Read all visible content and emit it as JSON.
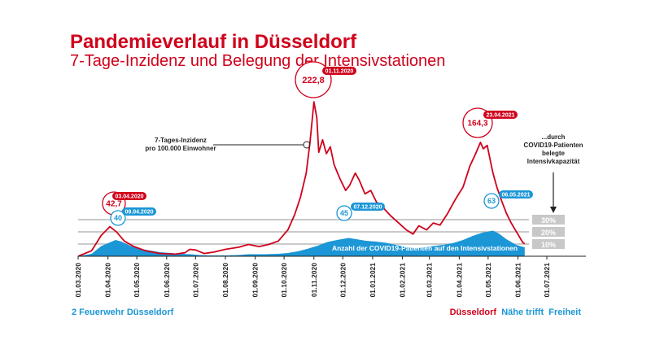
{
  "title": "Pandemieverlauf in Düsseldorf",
  "subtitle": "7-Tage-Inzidenz und Belegung der Intensivstationen",
  "footer": {
    "left": "2 Feuerwehr Düsseldorf",
    "brand_city": "Düsseldorf",
    "brand_slogan1": "Nähe trifft",
    "brand_slogan2": "Freiheit"
  },
  "colors": {
    "incidence": "#d0021b",
    "icu": "#1b96d6",
    "threshold_box": "#c8c8c8",
    "axis": "#222222"
  },
  "chart_data": {
    "type": "area",
    "xlim": [
      "2020-03-01",
      "2021-07-01"
    ],
    "x_tick_labels": [
      "01.03.2020",
      "01.04.2020",
      "01.05.2020",
      "01.06.2020",
      "01.07.2020",
      "01.08.2020",
      "01.09.2020",
      "01.10.2020",
      "01.11.2020",
      "01.12.2020",
      "01.01.2021",
      "01.02.2021",
      "01.03.2021",
      "01.04.2021",
      "01.05.2021",
      "01.06.2021",
      "01.07.2021"
    ],
    "series": [
      {
        "key": "incidence",
        "type": "line",
        "points": [
          [
            "2020-03-01",
            0
          ],
          [
            "2020-03-15",
            8
          ],
          [
            "2020-03-25",
            30
          ],
          [
            "2020-04-03",
            42.7
          ],
          [
            "2020-04-10",
            35
          ],
          [
            "2020-04-18",
            22
          ],
          [
            "2020-04-28",
            14
          ],
          [
            "2020-05-10",
            8
          ],
          [
            "2020-05-25",
            4
          ],
          [
            "2020-06-10",
            3
          ],
          [
            "2020-06-20",
            5
          ],
          [
            "2020-06-25",
            10
          ],
          [
            "2020-07-01",
            9
          ],
          [
            "2020-07-10",
            4
          ],
          [
            "2020-07-20",
            6
          ],
          [
            "2020-08-01",
            10
          ],
          [
            "2020-08-15",
            13
          ],
          [
            "2020-08-25",
            17
          ],
          [
            "2020-09-05",
            14
          ],
          [
            "2020-09-15",
            17
          ],
          [
            "2020-09-25",
            22
          ],
          [
            "2020-10-05",
            38
          ],
          [
            "2020-10-12",
            60
          ],
          [
            "2020-10-18",
            85
          ],
          [
            "2020-10-24",
            120
          ],
          [
            "2020-10-28",
            165
          ],
          [
            "2020-11-01",
            222.8
          ],
          [
            "2020-11-04",
            200
          ],
          [
            "2020-11-06",
            150
          ],
          [
            "2020-11-10",
            168
          ],
          [
            "2020-11-14",
            148
          ],
          [
            "2020-11-18",
            158
          ],
          [
            "2020-11-22",
            132
          ],
          [
            "2020-11-28",
            112
          ],
          [
            "2020-12-04",
            95
          ],
          [
            "2020-12-08",
            102
          ],
          [
            "2020-12-14",
            120
          ],
          [
            "2020-12-18",
            110
          ],
          [
            "2020-12-24",
            90
          ],
          [
            "2020-12-30",
            95
          ],
          [
            "2021-01-05",
            78
          ],
          [
            "2021-01-12",
            70
          ],
          [
            "2021-01-20",
            58
          ],
          [
            "2021-01-28",
            48
          ],
          [
            "2021-02-05",
            38
          ],
          [
            "2021-02-12",
            32
          ],
          [
            "2021-02-18",
            44
          ],
          [
            "2021-02-26",
            38
          ],
          [
            "2021-03-05",
            48
          ],
          [
            "2021-03-12",
            45
          ],
          [
            "2021-03-20",
            62
          ],
          [
            "2021-03-28",
            82
          ],
          [
            "2021-04-05",
            100
          ],
          [
            "2021-04-12",
            130
          ],
          [
            "2021-04-18",
            148
          ],
          [
            "2021-04-23",
            164.3
          ],
          [
            "2021-04-26",
            155
          ],
          [
            "2021-04-30",
            160
          ],
          [
            "2021-05-03",
            140
          ],
          [
            "2021-05-06",
            120
          ],
          [
            "2021-05-10",
            100
          ],
          [
            "2021-05-15",
            80
          ],
          [
            "2021-05-20",
            62
          ],
          [
            "2021-05-25",
            48
          ],
          [
            "2021-05-30",
            36
          ],
          [
            "2021-06-06",
            20
          ],
          [
            "2021-06-08",
            18
          ]
        ]
      },
      {
        "key": "icu",
        "type": "area",
        "label": "Anzahl der COVID19-Patienten auf den Intensivstationen",
        "points": [
          [
            "2020-03-01",
            0
          ],
          [
            "2020-03-15",
            6
          ],
          [
            "2020-03-25",
            25
          ],
          [
            "2020-04-09",
            40
          ],
          [
            "2020-04-15",
            36
          ],
          [
            "2020-04-25",
            25
          ],
          [
            "2020-05-05",
            18
          ],
          [
            "2020-05-15",
            14
          ],
          [
            "2020-05-25",
            10
          ],
          [
            "2020-06-05",
            8
          ],
          [
            "2020-06-15",
            6
          ],
          [
            "2020-06-25",
            5
          ],
          [
            "2020-07-05",
            3
          ],
          [
            "2020-07-15",
            2
          ],
          [
            "2020-08-01",
            2
          ],
          [
            "2020-08-15",
            3
          ],
          [
            "2020-08-25",
            5
          ],
          [
            "2020-09-10",
            5
          ],
          [
            "2020-09-25",
            6
          ],
          [
            "2020-10-05",
            8
          ],
          [
            "2020-10-15",
            12
          ],
          [
            "2020-10-25",
            18
          ],
          [
            "2020-11-05",
            26
          ],
          [
            "2020-11-15",
            35
          ],
          [
            "2020-11-25",
            40
          ],
          [
            "2020-12-07",
            45
          ],
          [
            "2020-12-15",
            42
          ],
          [
            "2020-12-25",
            38
          ],
          [
            "2021-01-05",
            36
          ],
          [
            "2021-01-15",
            33
          ],
          [
            "2021-01-25",
            28
          ],
          [
            "2021-02-05",
            22
          ],
          [
            "2021-02-15",
            20
          ],
          [
            "2021-02-25",
            22
          ],
          [
            "2021-03-05",
            25
          ],
          [
            "2021-03-15",
            28
          ],
          [
            "2021-03-25",
            32
          ],
          [
            "2021-04-05",
            40
          ],
          [
            "2021-04-15",
            50
          ],
          [
            "2021-04-25",
            58
          ],
          [
            "2021-05-06",
            63
          ],
          [
            "2021-05-12",
            56
          ],
          [
            "2021-05-20",
            42
          ],
          [
            "2021-05-30",
            28
          ],
          [
            "2021-06-08",
            22
          ]
        ]
      }
    ],
    "annotations": [
      {
        "key": "inc_apr",
        "series": "incidence",
        "value": "42,7",
        "date_label": "03.04.2020",
        "x": "2020-04-03",
        "y": 42.7
      },
      {
        "key": "icu_apr",
        "series": "icu",
        "value": "40",
        "date_label": "09.04.2020",
        "x": "2020-04-09",
        "y": 40
      },
      {
        "key": "inc_nov",
        "series": "incidence",
        "value": "222,8",
        "date_label": "01.11.2020",
        "x": "2020-11-01",
        "y": 222.8
      },
      {
        "key": "icu_dec",
        "series": "icu",
        "value": "45",
        "date_label": "07.12.2020",
        "x": "2020-12-07",
        "y": 45
      },
      {
        "key": "inc_apr21",
        "series": "incidence",
        "value": "164,3",
        "date_label": "23.04.2021",
        "x": "2021-04-23",
        "y": 164.3
      },
      {
        "key": "icu_may21",
        "series": "icu",
        "value": "63",
        "date_label": "06.05.2021",
        "x": "2021-05-06",
        "y": 63
      }
    ],
    "callout_incidence": [
      "7-Tages-Inzidenz",
      "pro 100.000 Einwohner"
    ],
    "callout_capacity": [
      "...durch",
      "COVID19-Patienten",
      "belegte",
      "Intensivkapazität"
    ],
    "capacity_levels": [
      {
        "label": "30%",
        "value": 30
      },
      {
        "label": "20%",
        "value": 20
      },
      {
        "label": "10%",
        "value": 10
      }
    ]
  }
}
